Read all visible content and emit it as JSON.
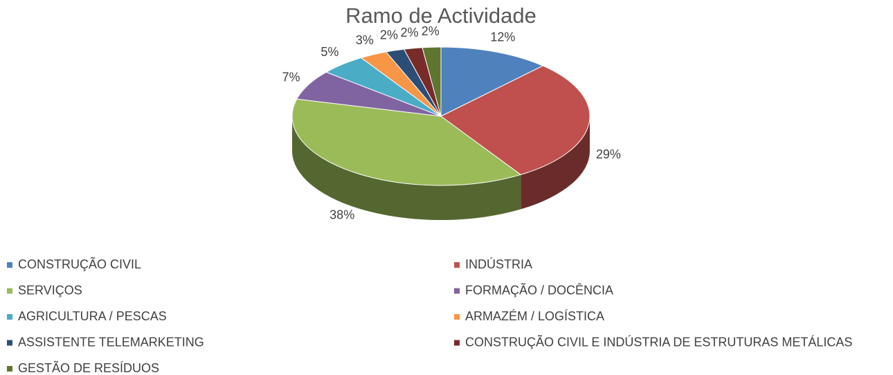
{
  "chart_data": {
    "type": "pie3d",
    "title": "Ramo de Actividade",
    "categories": [
      "CONSTRUÇÃO CIVIL",
      "INDÚSTRIA",
      "SERVIÇOS",
      "FORMAÇÃO / DOCÊNCIA",
      "AGRICULTURA / PESCAS",
      "ARMAZÉM / LOGÍSTICA",
      "ASSISTENTE TELEMARKETING",
      "CONSTRUÇÃO CIVIL E INDÚSTRIA DE ESTRUTURAS METÁLICAS",
      "GESTÃO DE RESÍDUOS"
    ],
    "values": [
      12,
      29,
      38,
      7,
      5,
      3,
      2,
      2,
      2
    ],
    "value_labels": [
      "12%",
      "29%",
      "38%",
      "7%",
      "5%",
      "3%",
      "2%",
      "2%",
      "2%"
    ],
    "colors": [
      "#4f81bd",
      "#c0504d",
      "#9bbb59",
      "#8064a2",
      "#4bacc6",
      "#f79646",
      "#2c4d75",
      "#772c2a",
      "#5f7530"
    ],
    "legend": "bottom"
  }
}
